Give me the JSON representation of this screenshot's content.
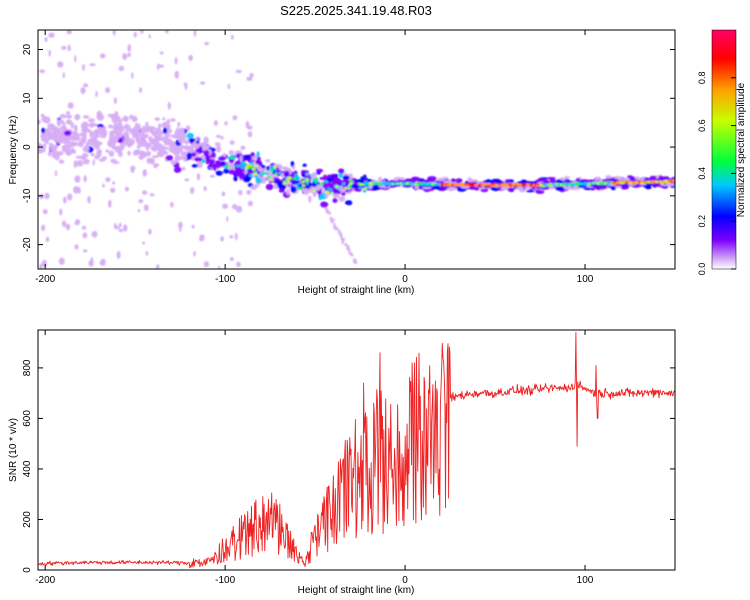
{
  "title": "S225.2025.341.19.48.R03",
  "chart_data": [
    {
      "type": "heatmap",
      "title": "S225.2025.341.19.48.R03",
      "xlabel": "Height of straight line (km)",
      "ylabel": "Frequency (Hz)",
      "xlim": [
        -204,
        150
      ],
      "ylim": [
        -25,
        24
      ],
      "xticks": [
        -200,
        -100,
        0,
        100
      ],
      "yticks": [
        -20,
        -10,
        0,
        10,
        20
      ],
      "description_of_ridge": {
        "x": [
          -200,
          -150,
          -120,
          -100,
          -80,
          -60,
          -40,
          -20,
          0,
          40,
          80,
          120,
          150
        ],
        "y": [
          2,
          2,
          0,
          -3,
          -5,
          -7,
          -8,
          -7.5,
          -7.5,
          -7.8,
          -7.8,
          -7.3,
          -7
        ]
      },
      "colorbar": {
        "label": "Normalized spectral amplitude",
        "range": [
          0.0,
          1.0
        ],
        "ticks": [
          "0.0",
          "0.2",
          "0.4",
          "0.6",
          "0.8"
        ],
        "tick_values": [
          0.0,
          0.2,
          0.4,
          0.6,
          0.8
        ],
        "colors": [
          "#ffffff",
          "#d7aef6",
          "#7d00ff",
          "#0000ff",
          "#00c8ff",
          "#00ff3c",
          "#c8ff00",
          "#ffa000",
          "#ff0000",
          "#ff0066"
        ]
      }
    },
    {
      "type": "line",
      "xlabel": "Height of straight line (km)",
      "ylabel": "SNR (10 * v/v)",
      "xlim": [
        -204,
        150
      ],
      "ylim": [
        0,
        950
      ],
      "xticks": [
        -200,
        -100,
        0,
        100
      ],
      "yticks": [
        0,
        200,
        400,
        600,
        800
      ],
      "series": [
        {
          "name": "SNR",
          "color": "#ee2222",
          "x": [
            -204,
            -180,
            -160,
            -140,
            -120,
            -110,
            -100,
            -90,
            -80,
            -75,
            -70,
            -65,
            -60,
            -55,
            -50,
            -45,
            -40,
            -35,
            -30,
            -25,
            -20,
            -15,
            -10,
            -5,
            0,
            5,
            10,
            15,
            20,
            25,
            30,
            40,
            50,
            60,
            70,
            80,
            90,
            94,
            95,
            96,
            100,
            105,
            110,
            120,
            130,
            140,
            150
          ],
          "y": [
            25,
            30,
            30,
            30,
            28,
            40,
            90,
            150,
            200,
            210,
            180,
            120,
            60,
            40,
            150,
            200,
            280,
            350,
            380,
            420,
            450,
            480,
            470,
            490,
            520,
            560,
            590,
            620,
            650,
            680,
            690,
            700,
            700,
            710,
            710,
            720,
            720,
            730,
            750,
            730,
            720,
            700,
            700,
            700,
            700,
            705,
            700
          ],
          "spikes": [
            {
              "x": -14,
              "y": 860
            },
            {
              "x": -23,
              "y": 740
            },
            {
              "x": 95,
              "y": 940
            },
            {
              "x": 95.5,
              "y": 490
            },
            {
              "x": 106,
              "y": 810
            },
            {
              "x": 107,
              "y": 600
            }
          ]
        }
      ]
    }
  ]
}
